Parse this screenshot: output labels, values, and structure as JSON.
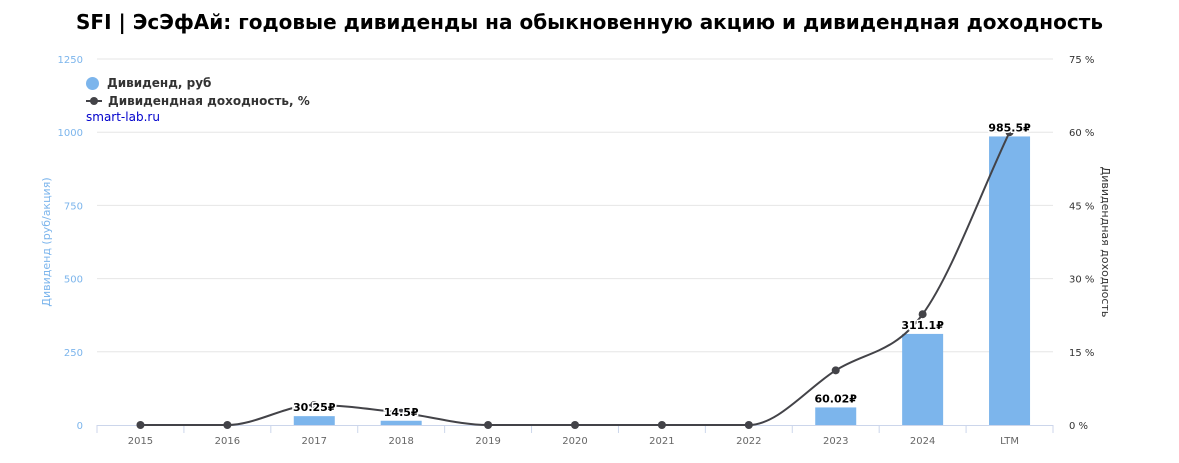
{
  "chart_data": {
    "type": "bar",
    "title": "SFI | ЭсЭфАй: годовые дивиденды на обыкновенную акцию и дивидендная доходность",
    "categories": [
      "2015",
      "2016",
      "2017",
      "2018",
      "2019",
      "2020",
      "2021",
      "2022",
      "2023",
      "2024",
      "LTM"
    ],
    "y_left": {
      "label": "Дивиденд (руб/акция)",
      "min": 0,
      "max": 1250,
      "ticks": [
        "0",
        "250",
        "500",
        "750",
        "1000",
        "1250"
      ],
      "color": "#7cb5ec"
    },
    "y_right": {
      "label": "Дивидендная доходность",
      "min": 0,
      "max": 75,
      "ticks": [
        "0 %",
        "15 %",
        "30 %",
        "45 %",
        "60 %",
        "75 %"
      ],
      "color": "#333333"
    },
    "series": [
      {
        "name": "Дивиденд, руб",
        "type": "bar",
        "axis": "left",
        "color": "#7cb5ec",
        "values": [
          0,
          0,
          30.25,
          14.5,
          0,
          0,
          0,
          0,
          60.02,
          311.1,
          985.5
        ],
        "data_labels": [
          "",
          "",
          "30.25₽",
          "14.5₽",
          "",
          "",
          "",
          "",
          "60.02₽",
          "311.1₽",
          "985.5₽"
        ]
      },
      {
        "name": "Дивидендная доходность, %",
        "type": "line",
        "axis": "right",
        "color": "#434348",
        "values": [
          0,
          0,
          4.1,
          2.5,
          0,
          0,
          0,
          0,
          11.2,
          22.7,
          60
        ]
      }
    ],
    "legend_position": "top-left",
    "grid": true
  },
  "credits": "smart-lab.ru"
}
